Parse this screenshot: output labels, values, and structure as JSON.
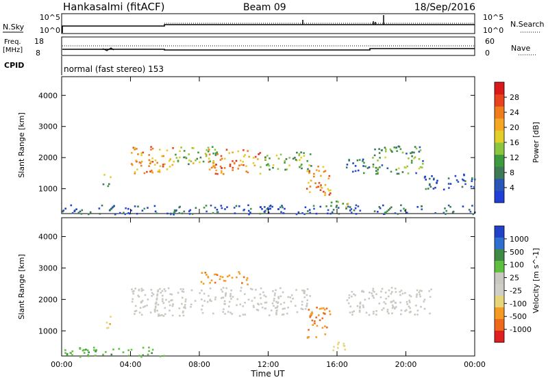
{
  "header": {
    "station": "Hankasalmi (fitACF)",
    "beam": "Beam 09",
    "date": "18/Sep/2016"
  },
  "nsky_panel": {
    "left_label": "N.Sky",
    "left_ticks": [
      "10^5",
      "10^0"
    ],
    "right_label": "N.Search",
    "right_ticks": [
      "10^5",
      "10^0"
    ]
  },
  "freq_panel": {
    "left_label_1": "Freq.",
    "left_label_2": "[MHz]",
    "left_ticks": [
      "18",
      "8"
    ],
    "right_label": "Nave",
    "right_ticks": [
      "60",
      "0"
    ]
  },
  "cpid": {
    "label": "CPID",
    "text": "normal (fast stereo) 153"
  },
  "colors": {
    "power": [
      "#1f3fd6",
      "#2a56b8",
      "#3e7a55",
      "#3e9a3e",
      "#8cc63e",
      "#e2cf2a",
      "#f5a623",
      "#f07c1e",
      "#e8421e",
      "#d81a1a"
    ],
    "velocity": [
      "#2142c8",
      "#2f6fd0",
      "#3f8a46",
      "#5fc040",
      "#c9c9c2",
      "#cfcfc8",
      "#e6d57a",
      "#f59b22",
      "#ee6a1a",
      "#e02020"
    ]
  },
  "chart_data": [
    {
      "type": "heatmap",
      "title": "Power",
      "xlabel": "Time UT",
      "ylabel": "Slant Range [km]",
      "x_ticks": [
        "00:00",
        "04:00",
        "08:00",
        "12:00",
        "16:00",
        "20:00",
        "00:00"
      ],
      "xlim": [
        0,
        24
      ],
      "ylim": [
        200,
        4600
      ],
      "y_ticks": [
        1000,
        2000,
        3000,
        4000
      ],
      "colorbar": {
        "label": "Power [dB]",
        "ticks": [
          "4",
          "8",
          "12",
          "16",
          "20",
          "24",
          "28"
        ],
        "range": [
          0,
          32
        ]
      },
      "blobs": [
        {
          "t0": 4.0,
          "t1": 6.5,
          "r0": 1500,
          "r1": 2400,
          "level": 22
        },
        {
          "t0": 6.5,
          "t1": 9.0,
          "r0": 1800,
          "r1": 2400,
          "level": 14
        },
        {
          "t0": 8.5,
          "t1": 11.5,
          "r0": 1500,
          "r1": 2300,
          "level": 24
        },
        {
          "t0": 11.5,
          "t1": 14.5,
          "r0": 1600,
          "r1": 2200,
          "level": 13
        },
        {
          "t0": 14.2,
          "t1": 15.6,
          "r0": 800,
          "r1": 1800,
          "level": 22
        },
        {
          "t0": 15.3,
          "t1": 16.6,
          "r0": 400,
          "r1": 700,
          "level": 14
        },
        {
          "t0": 16.5,
          "t1": 18.0,
          "r0": 1500,
          "r1": 2000,
          "level": 6
        },
        {
          "t0": 18.0,
          "t1": 21.0,
          "r0": 1500,
          "r1": 2400,
          "level": 11
        },
        {
          "t0": 21.0,
          "t1": 24.0,
          "r0": 1000,
          "r1": 1500,
          "level": 4
        },
        {
          "t0": 2.3,
          "t1": 2.8,
          "r0": 1100,
          "r1": 1500,
          "level": 12
        },
        {
          "t0": 0.0,
          "t1": 24.0,
          "r0": 200,
          "r1": 500,
          "level": 5
        }
      ]
    },
    {
      "type": "heatmap",
      "title": "Velocity",
      "xlabel": "Time UT",
      "ylabel": "Slant Range [km]",
      "x_ticks": [
        "00:00",
        "04:00",
        "08:00",
        "12:00",
        "16:00",
        "20:00",
        "00:00"
      ],
      "xlim": [
        0,
        24
      ],
      "ylim": [
        200,
        4600
      ],
      "y_ticks": [
        1000,
        2000,
        3000,
        4000
      ],
      "colorbar": {
        "label": "Velocity [m s^-1]",
        "ticks": [
          "1000",
          "500",
          "100",
          "25",
          "-25",
          "-100",
          "-500",
          "-1000"
        ]
      },
      "blobs": [
        {
          "t0": 4.0,
          "t1": 14.5,
          "r0": 1500,
          "r1": 2400,
          "level": 0
        },
        {
          "t0": 16.5,
          "t1": 21.5,
          "r0": 1500,
          "r1": 2400,
          "level": 0
        },
        {
          "t0": 8.0,
          "t1": 10.8,
          "r0": 2500,
          "r1": 2900,
          "level": -400
        },
        {
          "t0": 14.2,
          "t1": 15.6,
          "r0": 800,
          "r1": 1800,
          "level": -500
        },
        {
          "t0": 15.3,
          "t1": 16.6,
          "r0": 400,
          "r1": 700,
          "level": -60
        },
        {
          "t0": 0.0,
          "t1": 6.0,
          "r0": 200,
          "r1": 500,
          "level": 80
        },
        {
          "t0": 2.3,
          "t1": 2.8,
          "r0": 1100,
          "r1": 1500,
          "level": -90
        }
      ]
    }
  ]
}
